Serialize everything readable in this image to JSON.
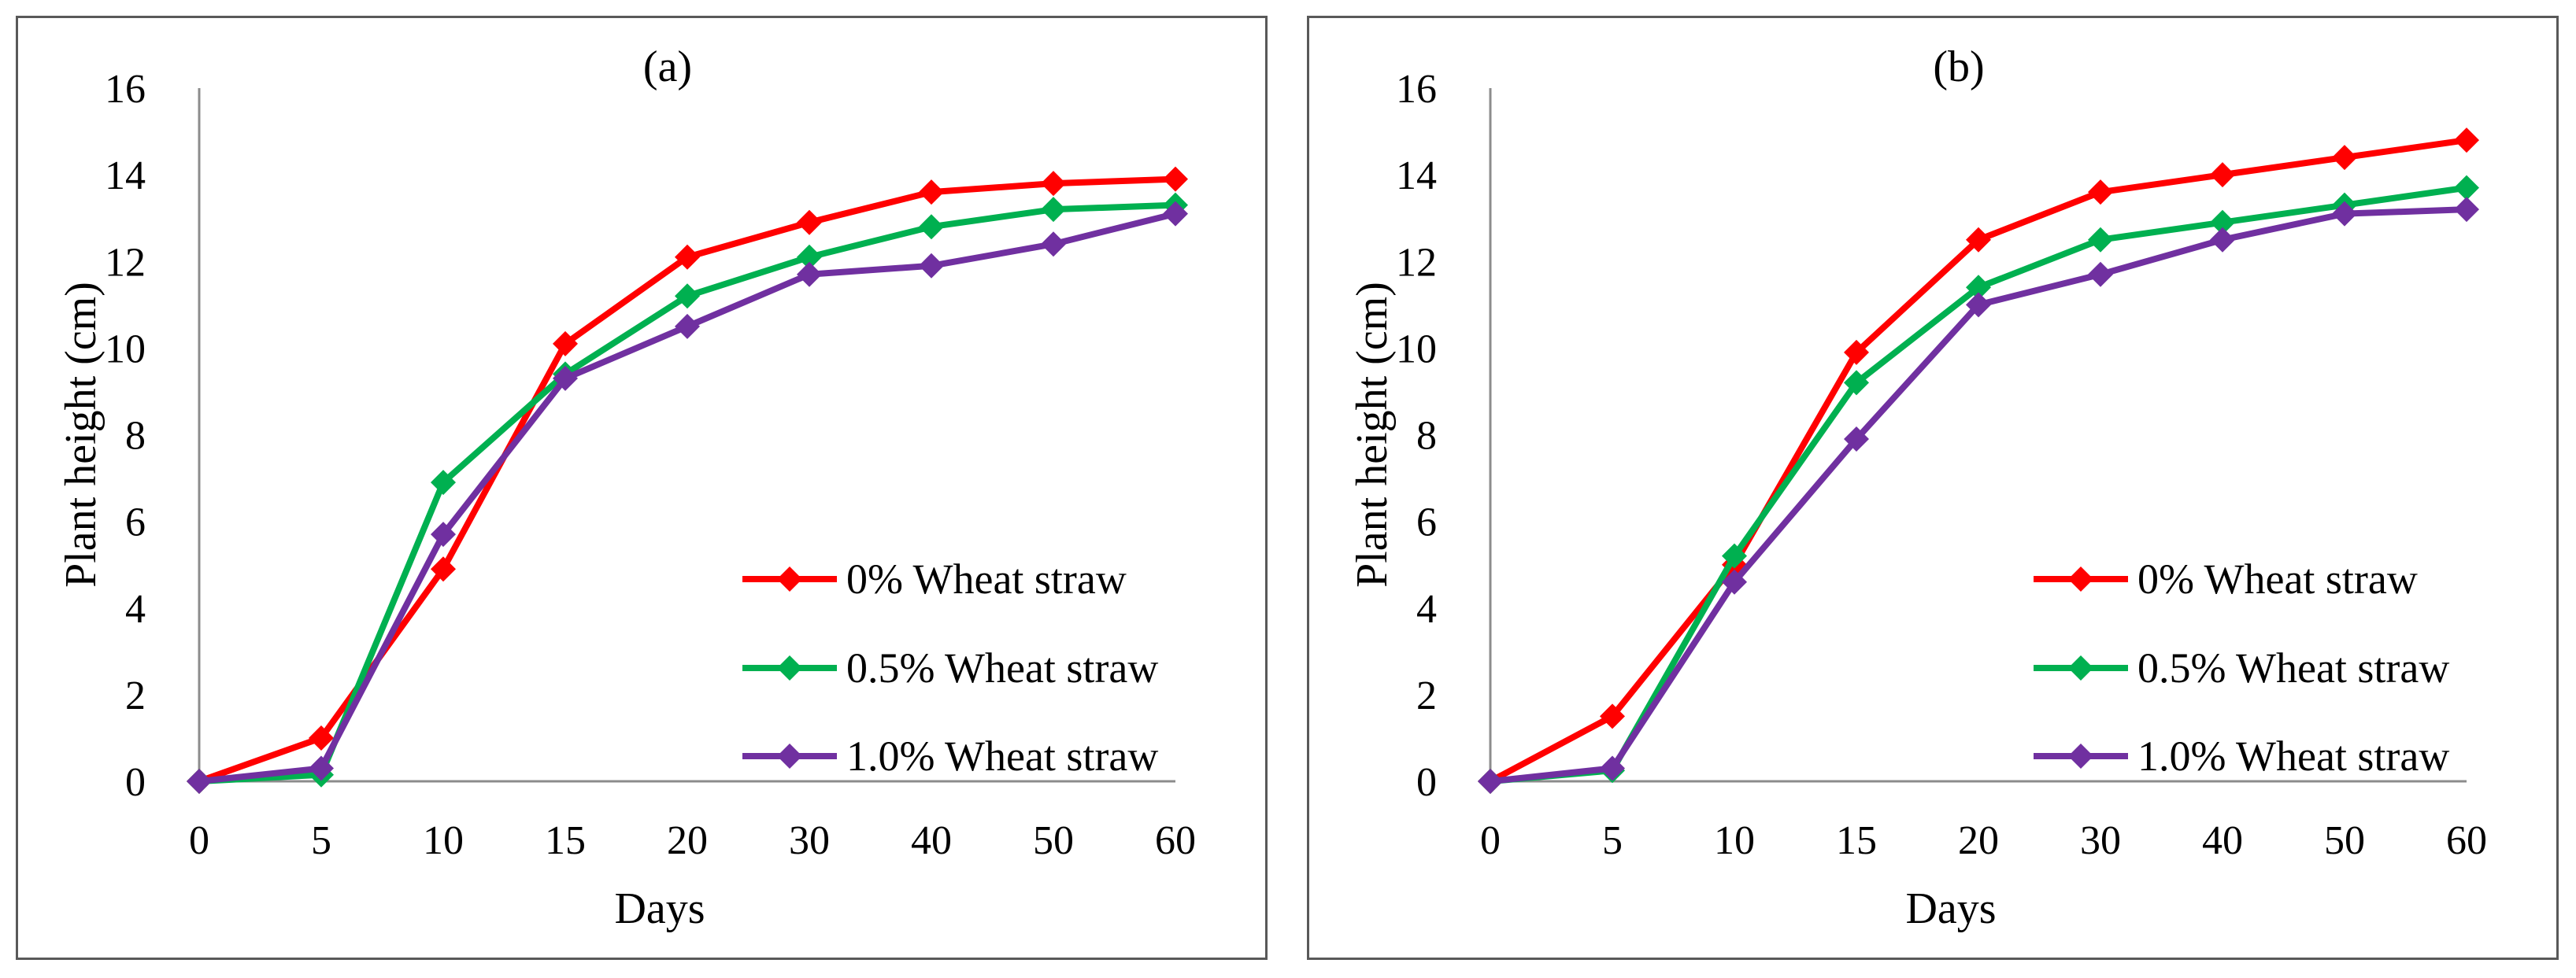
{
  "chart_data": [
    {
      "type": "line",
      "title": "(a)",
      "xlabel": "Days",
      "ylabel": "Plant height (cm)",
      "categories": [
        "0",
        "5",
        "10",
        "15",
        "20",
        "30",
        "40",
        "50",
        "60"
      ],
      "ylim": [
        0,
        16
      ],
      "yticks": [
        "0",
        "2",
        "4",
        "6",
        "8",
        "10",
        "12",
        "14",
        "16"
      ],
      "grid": false,
      "legend_position": "right",
      "series": [
        {
          "name": "0% Wheat straw",
          "color": "#FF0000",
          "values": [
            0,
            1.0,
            4.9,
            10.1,
            12.1,
            12.9,
            13.6,
            13.8,
            13.9
          ]
        },
        {
          "name": "0.5% Wheat straw",
          "color": "#00B050",
          "values": [
            0,
            0.15,
            6.9,
            9.4,
            11.2,
            12.1,
            12.8,
            13.2,
            13.3
          ]
        },
        {
          "name": "1.0% Wheat straw",
          "color": "#7030A0",
          "values": [
            0,
            0.3,
            5.7,
            9.3,
            10.5,
            11.7,
            11.9,
            12.4,
            13.1
          ]
        }
      ]
    },
    {
      "type": "line",
      "title": "(b)",
      "xlabel": "Days",
      "ylabel": "Plant height (cm)",
      "categories": [
        "0",
        "5",
        "10",
        "15",
        "20",
        "30",
        "40",
        "50",
        "60"
      ],
      "ylim": [
        0,
        16
      ],
      "yticks": [
        "0",
        "2",
        "4",
        "6",
        "8",
        "10",
        "12",
        "14",
        "16"
      ],
      "grid": false,
      "legend_position": "right",
      "series": [
        {
          "name": "0% Wheat straw",
          "color": "#FF0000",
          "values": [
            0,
            1.5,
            5.0,
            9.9,
            12.5,
            13.6,
            14.0,
            14.4,
            14.8
          ]
        },
        {
          "name": "0.5% Wheat straw",
          "color": "#00B050",
          "values": [
            0,
            0.25,
            5.2,
            9.2,
            11.4,
            12.5,
            12.9,
            13.3,
            13.7
          ]
        },
        {
          "name": "1.0% Wheat straw",
          "color": "#7030A0",
          "values": [
            0,
            0.3,
            4.6,
            7.9,
            11.0,
            11.7,
            12.5,
            13.1,
            13.2
          ]
        }
      ]
    }
  ]
}
